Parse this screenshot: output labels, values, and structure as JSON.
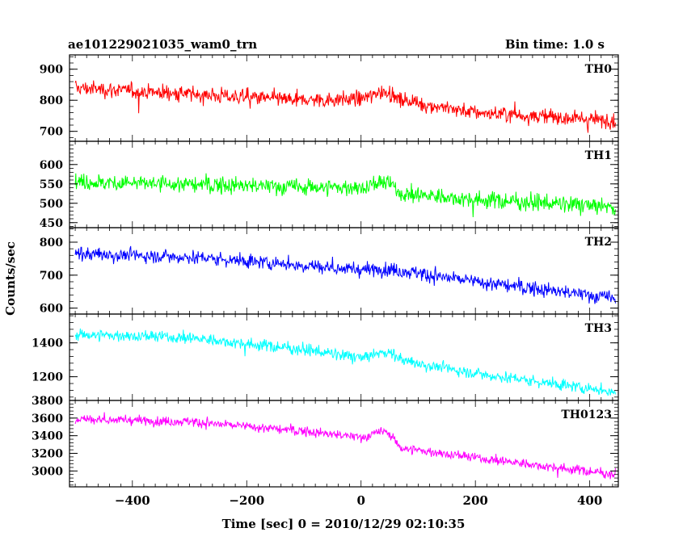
{
  "header": {
    "title": "ae101229021035_wam0_trn",
    "bin_time": "Bin time: 1.0 s"
  },
  "chart_data": {
    "type": "line",
    "xlabel": "Time [sec] 0 = 2010/12/29 02:10:35",
    "ylabel": "Counts/sec",
    "xlim": [
      -510,
      450
    ],
    "x_ticks": [
      -400,
      -200,
      0,
      200,
      400
    ],
    "x_tick_labels": [
      "−400",
      "−200",
      "0",
      "200",
      "400"
    ],
    "x_range": [
      -500,
      445
    ],
    "panels": [
      {
        "name": "TH0",
        "color": "#ff0000",
        "ylim": [
          668,
          946
        ],
        "y_ticks": [
          700,
          800,
          900
        ],
        "y_tick_labels": [
          "700",
          "800",
          "900"
        ],
        "trend": [
          [
            -500,
            840
          ],
          [
            -300,
            820
          ],
          [
            -100,
            800
          ],
          [
            0,
            805
          ],
          [
            45,
            830
          ],
          [
            70,
            800
          ],
          [
            200,
            760
          ],
          [
            445,
            735
          ]
        ],
        "noise": 32
      },
      {
        "name": "TH1",
        "color": "#00ff00",
        "ylim": [
          437,
          660
        ],
        "y_ticks": [
          450,
          500,
          550,
          600
        ],
        "y_tick_labels": [
          "450",
          "500",
          "550",
          "600"
        ],
        "trend": [
          [
            -500,
            555
          ],
          [
            -200,
            545
          ],
          [
            0,
            540
          ],
          [
            45,
            555
          ],
          [
            70,
            525
          ],
          [
            200,
            510
          ],
          [
            445,
            490
          ]
        ],
        "noise": 28
      },
      {
        "name": "TH2",
        "color": "#0000ff",
        "ylim": [
          582,
          844
        ],
        "y_ticks": [
          600,
          700,
          800
        ],
        "y_tick_labels": [
          "600",
          "700",
          "800"
        ],
        "trend": [
          [
            -500,
            765
          ],
          [
            -300,
            755
          ],
          [
            -100,
            730
          ],
          [
            0,
            715
          ],
          [
            45,
            720
          ],
          [
            200,
            680
          ],
          [
            445,
            630
          ]
        ],
        "noise": 28
      },
      {
        "name": "TH3",
        "color": "#00ffff",
        "ylim": [
          1060,
          1570
        ],
        "y_ticks": [
          1200,
          1400
        ],
        "y_tick_labels": [
          "1200",
          "1400"
        ],
        "trend": [
          [
            -500,
            1450
          ],
          [
            -300,
            1430
          ],
          [
            -100,
            1360
          ],
          [
            0,
            1310
          ],
          [
            45,
            1350
          ],
          [
            80,
            1290
          ],
          [
            200,
            1220
          ],
          [
            445,
            1110
          ]
        ],
        "noise": 45
      },
      {
        "name": "TH0123",
        "color": "#ff00ff",
        "ylim": [
          2820,
          3800
        ],
        "y_ticks": [
          3000,
          3200,
          3400,
          3600,
          3800
        ],
        "y_tick_labels": [
          "3000",
          "3200",
          "3400",
          "3600",
          "3800"
        ],
        "trend": [
          [
            -500,
            3590
          ],
          [
            -300,
            3560
          ],
          [
            -100,
            3450
          ],
          [
            0,
            3380
          ],
          [
            45,
            3460
          ],
          [
            70,
            3260
          ],
          [
            200,
            3150
          ],
          [
            445,
            2960
          ]
        ],
        "noise": 70
      }
    ]
  }
}
